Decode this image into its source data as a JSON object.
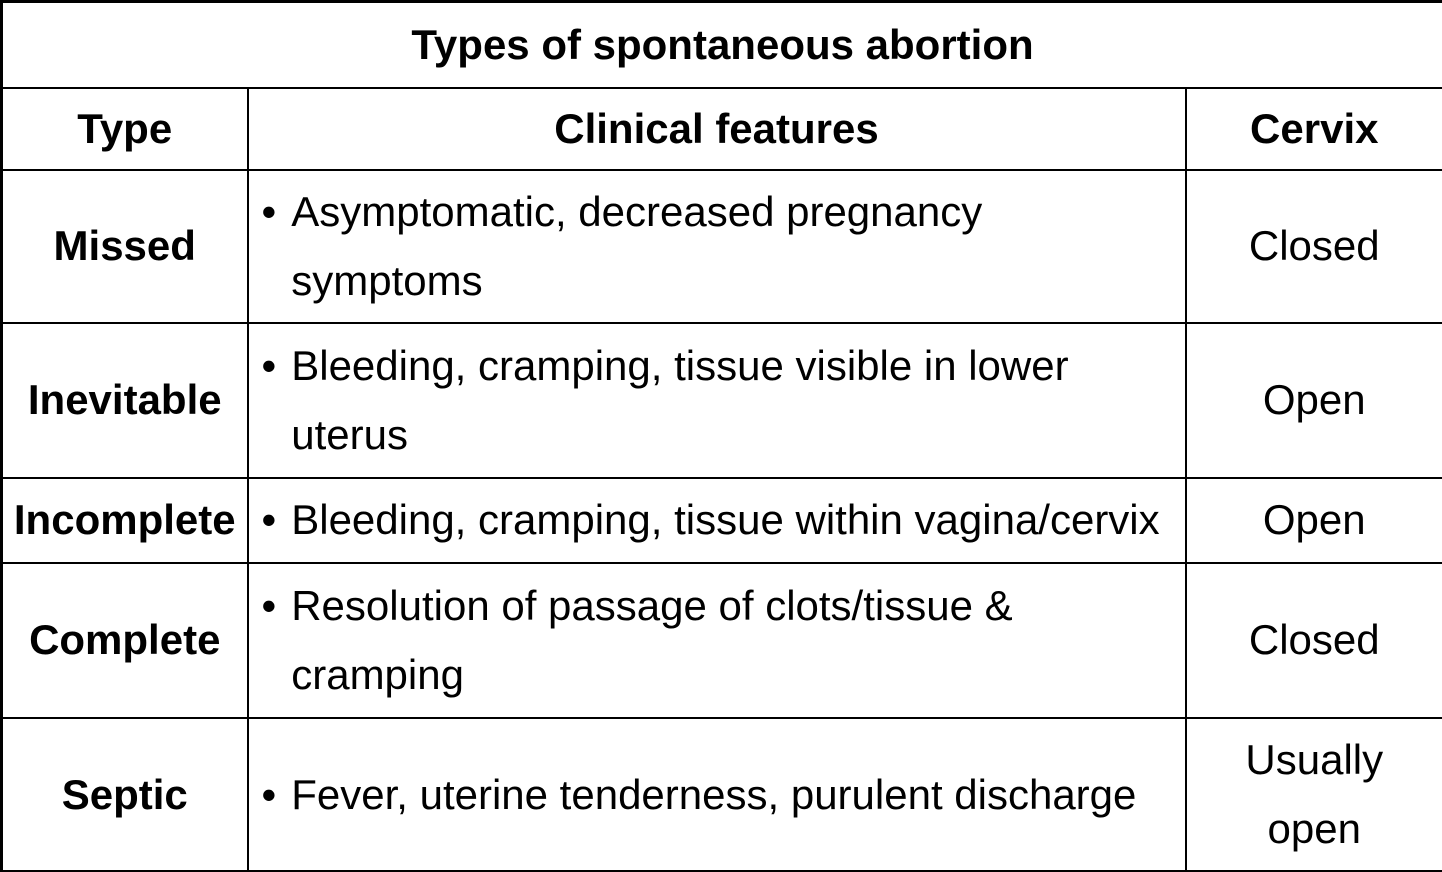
{
  "title": "Types of spontaneous abortion",
  "bullet_glyph": "•",
  "colors": {
    "border": "#000000",
    "background": "#ffffff",
    "text": "#000000"
  },
  "columns": {
    "type": "Type",
    "features": "Clinical features",
    "cervix": "Cervix"
  },
  "rows": [
    {
      "type": "Missed",
      "features": "Asymptomatic, decreased pregnancy symptoms",
      "cervix": "Closed"
    },
    {
      "type": "Inevitable",
      "features": "Bleeding, cramping, tissue visible in lower uterus",
      "cervix": "Open"
    },
    {
      "type": "Incomplete",
      "features": "Bleeding, cramping, tissue within vagina/cervix",
      "cervix": "Open"
    },
    {
      "type": "Complete",
      "features": "Resolution of passage of clots/tissue & cramping",
      "cervix": "Closed"
    },
    {
      "type": "Septic",
      "features": "Fever, uterine tenderness, purulent discharge",
      "cervix": "Usually open"
    }
  ]
}
